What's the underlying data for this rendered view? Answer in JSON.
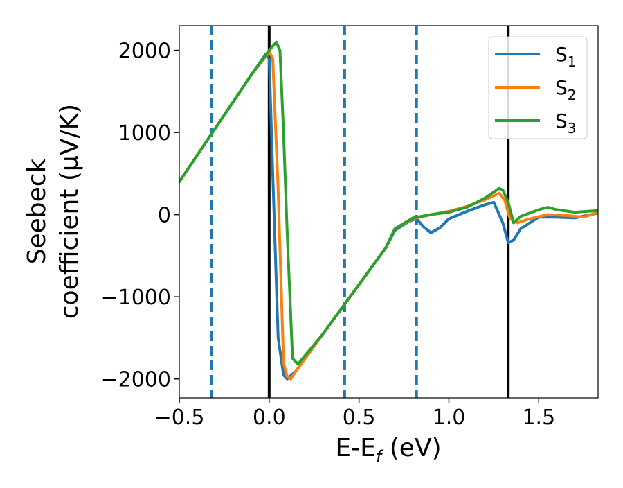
{
  "chart_data": {
    "type": "line",
    "title": "",
    "xlabel_main": "E-E",
    "xlabel_sub": "f",
    "xlabel_tail": " (eV)",
    "ylabel_line1": "Seebeck",
    "ylabel_line2": "coefficient  (μV/K)",
    "xlim": [
      -0.5,
      1.83
    ],
    "ylim": [
      -2230,
      2300
    ],
    "xticks": [
      -0.5,
      0.0,
      0.5,
      1.0,
      1.5
    ],
    "xtick_labels": [
      "−0.5",
      "0.0",
      "0.5",
      "1.0",
      "1.5"
    ],
    "yticks": [
      -2000,
      -1000,
      0,
      1000,
      2000
    ],
    "ytick_labels": [
      "−2000",
      "−1000",
      "0",
      "1000",
      "2000"
    ],
    "grid": false,
    "legend_position": "top-right",
    "solid_vlines_x": [
      0.0,
      1.33
    ],
    "dashed_vlines_x": [
      -0.32,
      0.42,
      0.82
    ],
    "series": [
      {
        "name": "S",
        "name_sub": "1",
        "color": "#1f77b4",
        "x": [
          -0.5,
          -0.3,
          -0.1,
          -0.02,
          0.0,
          0.02,
          0.05,
          0.08,
          0.1,
          0.15,
          0.3,
          0.5,
          0.65,
          0.7,
          0.78,
          0.82,
          0.86,
          0.9,
          0.95,
          1.0,
          1.1,
          1.2,
          1.25,
          1.3,
          1.33,
          1.36,
          1.4,
          1.5,
          1.6,
          1.7,
          1.83
        ],
        "y": [
          400,
          1050,
          1700,
          1950,
          1900,
          500,
          -1500,
          -1950,
          -2000,
          -1900,
          -1450,
          -850,
          -400,
          -190,
          -80,
          -50,
          -150,
          -220,
          -160,
          -50,
          40,
          120,
          150,
          -100,
          -340,
          -310,
          -170,
          -30,
          -30,
          -40,
          20
        ]
      },
      {
        "name": "S",
        "name_sub": "2",
        "color": "#ff7f0e",
        "x": [
          -0.5,
          -0.3,
          -0.1,
          0.0,
          0.02,
          0.05,
          0.08,
          0.1,
          0.12,
          0.15,
          0.3,
          0.5,
          0.65,
          0.7,
          0.8,
          0.9,
          1.0,
          1.1,
          1.2,
          1.28,
          1.31,
          1.34,
          1.38,
          1.45,
          1.55,
          1.65,
          1.75,
          1.83
        ],
        "y": [
          400,
          1050,
          1700,
          1980,
          1900,
          300,
          -1800,
          -1970,
          -2000,
          -1900,
          -1450,
          -850,
          -400,
          -170,
          -50,
          0,
          40,
          100,
          180,
          260,
          180,
          -50,
          -100,
          -50,
          0,
          -10,
          -30,
          30
        ]
      },
      {
        "name": "S",
        "name_sub": "3",
        "color": "#2ca02c",
        "x": [
          -0.5,
          -0.3,
          -0.1,
          0.0,
          0.02,
          0.04,
          0.06,
          0.08,
          0.1,
          0.13,
          0.16,
          0.3,
          0.5,
          0.65,
          0.7,
          0.8,
          0.9,
          1.0,
          1.1,
          1.2,
          1.28,
          1.3,
          1.33,
          1.36,
          1.4,
          1.5,
          1.55,
          1.6,
          1.7,
          1.83
        ],
        "y": [
          400,
          1050,
          1700,
          2000,
          2050,
          2100,
          2000,
          1000,
          -200,
          -1750,
          -1820,
          -1450,
          -850,
          -400,
          -170,
          -40,
          0,
          30,
          90,
          200,
          320,
          300,
          150,
          -100,
          -20,
          60,
          90,
          60,
          30,
          50
        ]
      }
    ]
  }
}
